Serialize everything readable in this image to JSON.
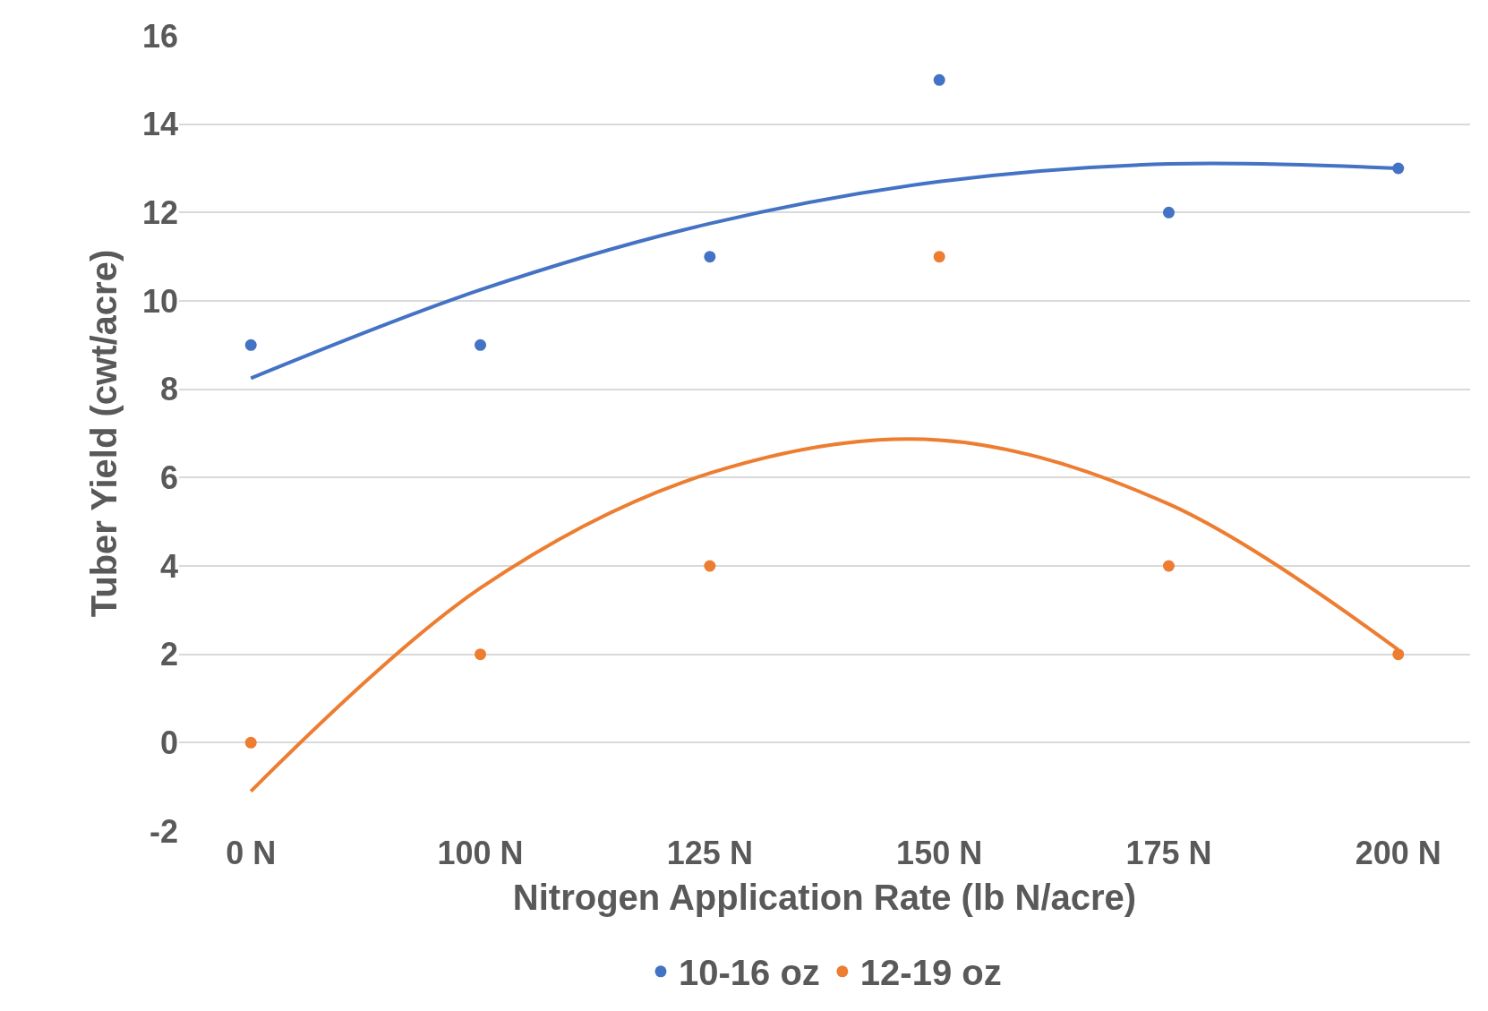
{
  "chart_data": {
    "type": "scatter",
    "xlabel": "Nitrogen Application Rate (lb N/acre)",
    "ylabel": "Tuber Yield (cwt/acre)",
    "categories": [
      "0 N",
      "100 N",
      "125 N",
      "150 N",
      "175 N",
      "200 N"
    ],
    "series": [
      {
        "name": "10-16 oz",
        "color": "#4472c4",
        "values": [
          9,
          9,
          11,
          15,
          12,
          13
        ]
      },
      {
        "name": "12-19 oz",
        "color": "#ed7d31",
        "values": [
          0,
          2,
          4,
          11,
          4,
          2
        ]
      },
      {
        "type": "line",
        "marker": "none",
        "color": "#4472c4",
        "values": [
          8.25,
          10.25,
          11.75,
          12.7,
          13.1,
          13.0
        ]
      },
      {
        "type": "line",
        "marker": "none",
        "color": "#ed7d31",
        "values": [
          -1.1,
          3.5,
          6.1,
          6.85,
          5.4,
          2.1
        ]
      }
    ],
    "ylim": [
      -2,
      16
    ],
    "yticks": [
      -2,
      0,
      2,
      4,
      6,
      8,
      10,
      12,
      14,
      16
    ],
    "grid": "y",
    "legend": "bottom",
    "marker": "circle",
    "line_style": "solid"
  }
}
